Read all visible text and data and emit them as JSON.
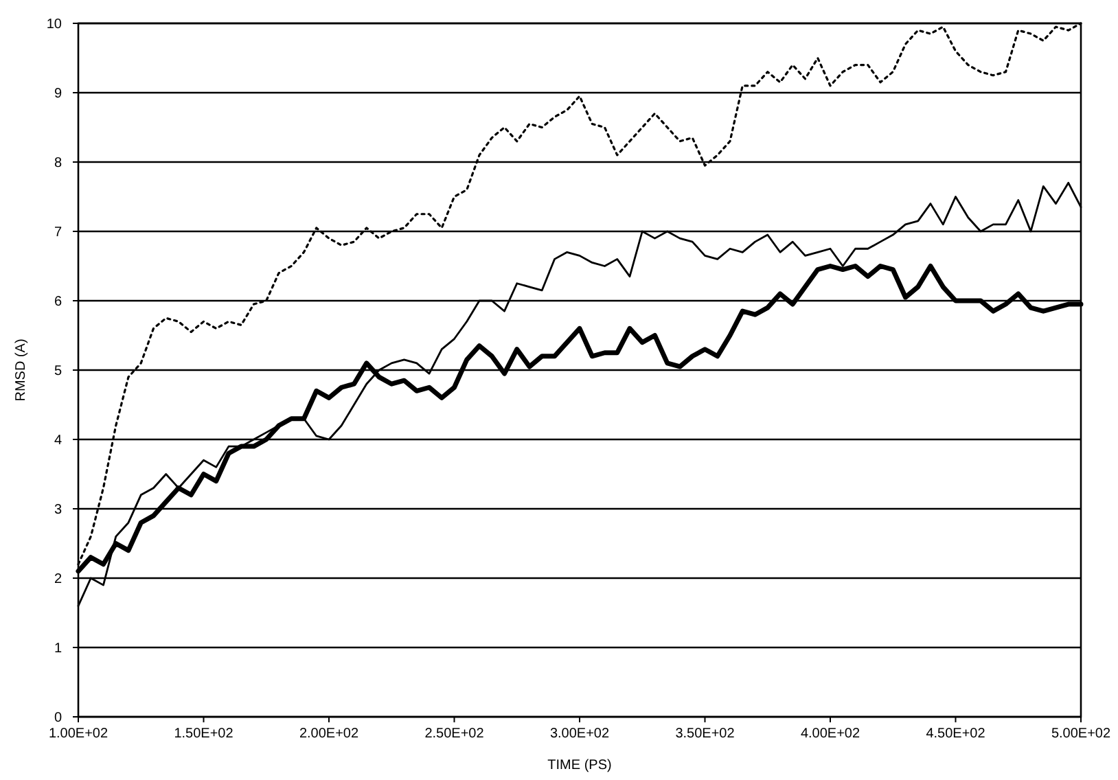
{
  "chart_data": {
    "type": "line",
    "xlabel": "TIME (PS)",
    "ylabel": "RMSD (A)",
    "x": [
      100,
      105,
      110,
      115,
      120,
      125,
      130,
      135,
      140,
      145,
      150,
      155,
      160,
      165,
      170,
      175,
      180,
      185,
      190,
      195,
      200,
      205,
      210,
      215,
      220,
      225,
      230,
      235,
      240,
      245,
      250,
      255,
      260,
      265,
      270,
      275,
      280,
      285,
      290,
      295,
      300,
      305,
      310,
      315,
      320,
      325,
      330,
      335,
      340,
      345,
      350,
      355,
      360,
      365,
      370,
      375,
      380,
      385,
      390,
      395,
      400,
      405,
      410,
      415,
      420,
      425,
      430,
      435,
      440,
      445,
      450,
      455,
      460,
      465,
      470,
      475,
      480,
      485,
      490,
      495,
      500
    ],
    "series": [
      {
        "color": "#000000",
        "line_style": "dotted",
        "values": [
          2.2,
          2.6,
          3.3,
          4.2,
          4.9,
          5.1,
          5.6,
          5.75,
          5.7,
          5.55,
          5.7,
          5.6,
          5.7,
          5.65,
          5.95,
          6.0,
          6.4,
          6.5,
          6.7,
          7.05,
          6.9,
          6.8,
          6.85,
          7.05,
          6.9,
          7.0,
          7.05,
          7.25,
          7.25,
          7.05,
          7.5,
          7.6,
          8.1,
          8.35,
          8.5,
          8.3,
          8.55,
          8.5,
          8.65,
          8.75,
          8.95,
          8.55,
          8.5,
          8.1,
          8.3,
          8.5,
          8.7,
          8.5,
          8.3,
          8.35,
          7.95,
          8.1,
          8.3,
          9.1,
          9.1,
          9.3,
          9.15,
          9.4,
          9.2,
          9.5,
          9.1,
          9.3,
          9.4,
          9.4,
          9.15,
          9.3,
          9.7,
          9.9,
          9.85,
          9.95,
          9.6,
          9.4,
          9.3,
          9.25,
          9.3,
          9.9,
          9.85,
          9.75,
          9.95,
          9.9,
          10.0
        ]
      },
      {
        "color": "#000000",
        "line_style": "solid",
        "values": [
          1.6,
          2.0,
          1.9,
          2.6,
          2.8,
          3.2,
          3.3,
          3.5,
          3.3,
          3.5,
          3.7,
          3.6,
          3.9,
          3.9,
          4.0,
          4.1,
          4.2,
          4.3,
          4.3,
          4.05,
          4.0,
          4.2,
          4.5,
          4.8,
          5.0,
          5.1,
          5.15,
          5.1,
          4.95,
          5.3,
          5.45,
          5.7,
          6.0,
          6.0,
          5.85,
          6.25,
          6.2,
          6.15,
          6.6,
          6.7,
          6.65,
          6.55,
          6.5,
          6.6,
          6.35,
          7.0,
          6.9,
          7.0,
          6.9,
          6.85,
          6.65,
          6.6,
          6.75,
          6.7,
          6.85,
          6.95,
          6.7,
          6.85,
          6.65,
          6.7,
          6.75,
          6.5,
          6.75,
          6.75,
          6.85,
          6.95,
          7.1,
          7.15,
          7.4,
          7.1,
          7.5,
          7.2,
          7.0,
          7.1,
          7.1,
          7.45,
          7.0,
          7.65,
          7.4,
          7.7,
          7.35
        ]
      },
      {
        "color": "#000000",
        "line_style": "solid",
        "values": [
          2.1,
          2.3,
          2.2,
          2.5,
          2.4,
          2.8,
          2.9,
          3.1,
          3.3,
          3.2,
          3.5,
          3.4,
          3.8,
          3.9,
          3.9,
          4.0,
          4.2,
          4.3,
          4.3,
          4.7,
          4.6,
          4.75,
          4.8,
          5.1,
          4.9,
          4.8,
          4.85,
          4.7,
          4.75,
          4.6,
          4.75,
          5.15,
          5.35,
          5.2,
          4.95,
          5.3,
          5.05,
          5.2,
          5.2,
          5.4,
          5.6,
          5.2,
          5.25,
          5.25,
          5.6,
          5.4,
          5.5,
          5.1,
          5.05,
          5.2,
          5.3,
          5.2,
          5.5,
          5.85,
          5.8,
          5.9,
          6.1,
          5.95,
          6.2,
          6.45,
          6.5,
          6.45,
          6.5,
          6.35,
          6.5,
          6.45,
          6.05,
          6.2,
          6.5,
          6.2,
          6.0,
          6.0,
          6.0,
          5.85,
          5.95,
          6.1,
          5.9,
          5.85,
          5.9,
          5.95,
          5.95
        ]
      }
    ],
    "xlim": [
      100,
      500
    ],
    "xticks": [
      {
        "value": 100,
        "label": "1.00E+02"
      },
      {
        "value": 150,
        "label": "1.50E+02"
      },
      {
        "value": 200,
        "label": "2.00E+02"
      },
      {
        "value": 250,
        "label": "2.50E+02"
      },
      {
        "value": 300,
        "label": "3.00E+02"
      },
      {
        "value": 350,
        "label": "3.50E+02"
      },
      {
        "value": 400,
        "label": "4.00E+02"
      },
      {
        "value": 450,
        "label": "4.50E+02"
      },
      {
        "value": 500,
        "label": "5.00E+02"
      }
    ],
    "ylim": [
      0,
      10
    ],
    "yticks": [
      0,
      1,
      2,
      3,
      4,
      5,
      6,
      7,
      8,
      9,
      10
    ],
    "grid": "y"
  }
}
